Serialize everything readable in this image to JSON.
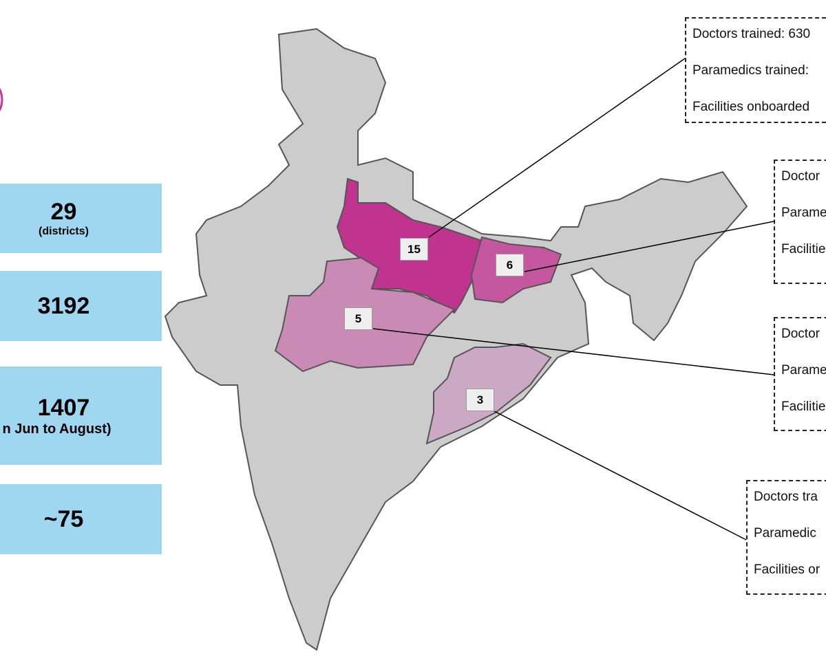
{
  "accent_color": "#C7359A",
  "stats": [
    {
      "value": "29",
      "sub": "(districts)"
    },
    {
      "value": "3192",
      "sub": ""
    },
    {
      "value": "1407",
      "sub": "n Jun to August)"
    },
    {
      "value": "~75",
      "sub": ""
    }
  ],
  "map": {
    "base_color": "#cccccc",
    "regions": [
      {
        "label": "15",
        "color": "#C0338F"
      },
      {
        "label": "6",
        "color": "#C4579F"
      },
      {
        "label": "5",
        "color": "#C98AB6"
      },
      {
        "label": "3",
        "color": "#CBA8C4"
      }
    ]
  },
  "callouts": [
    {
      "lines": [
        "Doctors trained: 630",
        "Paramedics trained:",
        "Facilities onboarded"
      ]
    },
    {
      "lines": [
        "Doctor",
        "Parame",
        "Facilitie"
      ]
    },
    {
      "lines": [
        "Doctor",
        "Parame",
        "Facilitie"
      ]
    },
    {
      "lines": [
        "Doctors tra",
        "Paramedic",
        "Facilities or"
      ]
    }
  ]
}
